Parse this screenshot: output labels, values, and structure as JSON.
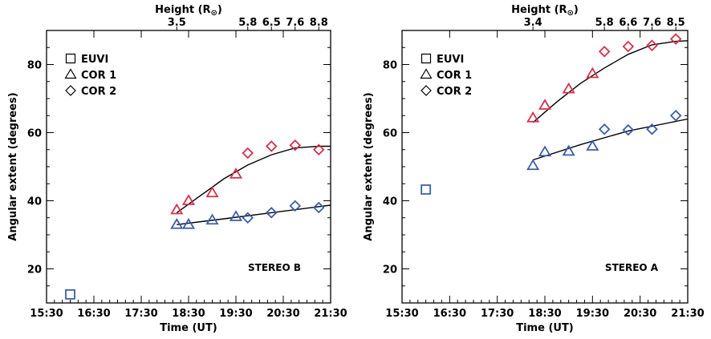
{
  "chart_data": [
    {
      "type": "scatter",
      "panel_label": "STEREO B",
      "xlabel": "Time (UT)",
      "ylabel": "Angular extent (degrees)",
      "top_axis_label": "Height (R",
      "top_axis_label_symbol": "⊙",
      "top_axis_label_close": ")",
      "xlim": [
        "15:30",
        "21:30"
      ],
      "ylim": [
        10,
        90
      ],
      "x_ticks": [
        "15:30",
        "16:30",
        "17:30",
        "18:30",
        "19:30",
        "20:30",
        "21:30"
      ],
      "y_ticks": [
        20,
        40,
        60,
        80
      ],
      "top_ticks": [
        {
          "label": "3.5",
          "time": "18:15"
        },
        {
          "label": "5.8",
          "time": "19:45"
        },
        {
          "label": "6.5",
          "time": "20:15"
        },
        {
          "label": "7.6",
          "time": "20:45"
        },
        {
          "label": "8.8",
          "time": "21:15"
        }
      ],
      "legend": [
        {
          "label": "EUVI",
          "marker": "square"
        },
        {
          "label": "COR 1",
          "marker": "triangle"
        },
        {
          "label": "COR 2",
          "marker": "diamond"
        }
      ],
      "legend_position": "top-left",
      "colors": {
        "upper": "#d6304a",
        "lower": "#3a5ea8",
        "fit": "#000000"
      },
      "series": [
        {
          "instrument": "EUVI",
          "color_role": "lower",
          "points": [
            [
              "16:00",
              12.5
            ]
          ]
        },
        {
          "instrument": "COR 1",
          "color_role": "upper",
          "points": [
            [
              "18:15",
              37.3
            ],
            [
              "18:30",
              40.0
            ],
            [
              "19:00",
              42.3
            ],
            [
              "19:30",
              47.8
            ]
          ]
        },
        {
          "instrument": "COR 2",
          "color_role": "upper",
          "points": [
            [
              "19:45",
              54.0
            ],
            [
              "20:15",
              56.0
            ],
            [
              "20:45",
              56.3
            ],
            [
              "21:15",
              55.0
            ]
          ]
        },
        {
          "instrument": "COR 1",
          "color_role": "lower",
          "points": [
            [
              "18:15",
              33.0
            ],
            [
              "18:30",
              33.0
            ],
            [
              "19:00",
              34.3
            ],
            [
              "19:30",
              35.3
            ]
          ]
        },
        {
          "instrument": "COR 2",
          "color_role": "lower",
          "points": [
            [
              "19:45",
              35.0
            ],
            [
              "20:15",
              36.5
            ],
            [
              "20:45",
              38.5
            ],
            [
              "21:15",
              38.0
            ]
          ]
        }
      ],
      "fits": [
        {
          "color_role": "upper",
          "points": [
            [
              "18:15",
              36.5
            ],
            [
              "18:45",
              41.5
            ],
            [
              "19:15",
              46.5
            ],
            [
              "19:45",
              50.5
            ],
            [
              "20:15",
              53.5
            ],
            [
              "20:45",
              55.5
            ],
            [
              "21:15",
              56.0
            ],
            [
              "21:30",
              56.0
            ]
          ]
        },
        {
          "color_role": "lower",
          "points": [
            [
              "18:15",
              33.0
            ],
            [
              "19:15",
              34.7
            ],
            [
              "20:15",
              36.5
            ],
            [
              "21:30",
              38.7
            ]
          ]
        }
      ]
    },
    {
      "type": "scatter",
      "panel_label": "STEREO A",
      "xlabel": "Time (UT)",
      "ylabel": "Angular extent (degrees)",
      "top_axis_label": "Height (R",
      "top_axis_label_symbol": "⊙",
      "top_axis_label_close": ")",
      "xlim": [
        "15:30",
        "21:30"
      ],
      "ylim": [
        10,
        90
      ],
      "x_ticks": [
        "15:30",
        "16:30",
        "17:30",
        "18:30",
        "19:30",
        "20:30",
        "21:30"
      ],
      "y_ticks": [
        20,
        40,
        60,
        80
      ],
      "top_ticks": [
        {
          "label": "3.4",
          "time": "18:15"
        },
        {
          "label": "5.8",
          "time": "19:45"
        },
        {
          "label": "6.6",
          "time": "20:15"
        },
        {
          "label": "7.6",
          "time": "20:45"
        },
        {
          "label": "8.5",
          "time": "21:15"
        }
      ],
      "legend": [
        {
          "label": "EUVI",
          "marker": "square"
        },
        {
          "label": "COR 1",
          "marker": "triangle"
        },
        {
          "label": "COR 2",
          "marker": "diamond"
        }
      ],
      "legend_position": "top-left",
      "colors": {
        "upper": "#d6304a",
        "lower": "#3a5ea8",
        "fit": "#000000"
      },
      "series": [
        {
          "instrument": "EUVI",
          "color_role": "lower",
          "points": [
            [
              "16:00",
              43.3
            ]
          ]
        },
        {
          "instrument": "COR 1",
          "color_role": "upper",
          "points": [
            [
              "18:15",
              64.3
            ],
            [
              "18:30",
              68.0
            ],
            [
              "19:00",
              72.8
            ],
            [
              "19:30",
              77.3
            ]
          ]
        },
        {
          "instrument": "COR 2",
          "color_role": "upper",
          "points": [
            [
              "19:45",
              83.8
            ],
            [
              "20:15",
              85.3
            ],
            [
              "20:45",
              85.6
            ],
            [
              "21:15",
              87.5
            ]
          ]
        },
        {
          "instrument": "COR 1",
          "color_role": "lower",
          "points": [
            [
              "18:15",
              50.3
            ],
            [
              "18:30",
              54.3
            ],
            [
              "19:00",
              54.5
            ],
            [
              "19:30",
              56.0
            ]
          ]
        },
        {
          "instrument": "COR 2",
          "color_role": "lower",
          "points": [
            [
              "19:45",
              61.0
            ],
            [
              "20:15",
              60.8
            ],
            [
              "20:45",
              61.0
            ],
            [
              "21:15",
              65.0
            ]
          ]
        }
      ],
      "fits": [
        {
          "color_role": "upper",
          "points": [
            [
              "18:15",
              63.0
            ],
            [
              "18:45",
              69.0
            ],
            [
              "19:15",
              74.5
            ],
            [
              "19:45",
              79.0
            ],
            [
              "20:15",
              83.0
            ],
            [
              "20:45",
              85.8
            ],
            [
              "21:15",
              86.8
            ],
            [
              "21:30",
              87.0
            ]
          ]
        },
        {
          "color_role": "lower",
          "points": [
            [
              "18:15",
              52.0
            ],
            [
              "19:15",
              56.5
            ],
            [
              "20:15",
              60.5
            ],
            [
              "21:30",
              64.0
            ]
          ]
        }
      ]
    }
  ]
}
